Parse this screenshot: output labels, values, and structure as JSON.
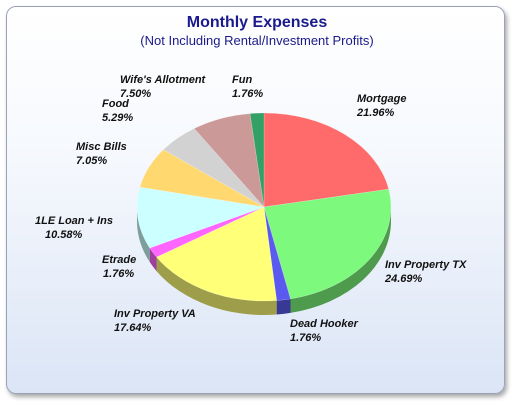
{
  "chart_data": {
    "type": "pie",
    "title": "Monthly Expenses",
    "subtitle": "(Not Including Rental/Investment Profits)",
    "three_d": true,
    "slices": [
      {
        "label": "Mortgage",
        "pct_label": "21.96%",
        "value": 21.96,
        "color": "#ff6b6b"
      },
      {
        "label": "Inv Property TX",
        "pct_label": "24.69%",
        "value": 24.69,
        "color": "#7dfa7d"
      },
      {
        "label": "Dead Hooker",
        "pct_label": "1.76%",
        "value": 1.76,
        "color": "#5a5af0"
      },
      {
        "label": "Inv Property VA",
        "pct_label": "17.64%",
        "value": 17.64,
        "color": "#ffff78"
      },
      {
        "label": "Etrade",
        "pct_label": "1.76%",
        "value": 1.76,
        "color": "#ff66ff"
      },
      {
        "label": "1LE Loan + Ins",
        "pct_label": "10.58%",
        "value": 10.58,
        "color": "#ccffff"
      },
      {
        "label": "Misc Bills",
        "pct_label": "7.05%",
        "value": 7.05,
        "color": "#ffd870"
      },
      {
        "label": "Food",
        "pct_label": "5.29%",
        "value": 5.29,
        "color": "#d2d2d2"
      },
      {
        "label": "Wife's Allotment",
        "pct_label": "7.50%",
        "value": 7.5,
        "color": "#cc9999"
      },
      {
        "label": "Fun",
        "pct_label": "1.76%",
        "value": 1.76,
        "color": "#33a066"
      }
    ]
  }
}
